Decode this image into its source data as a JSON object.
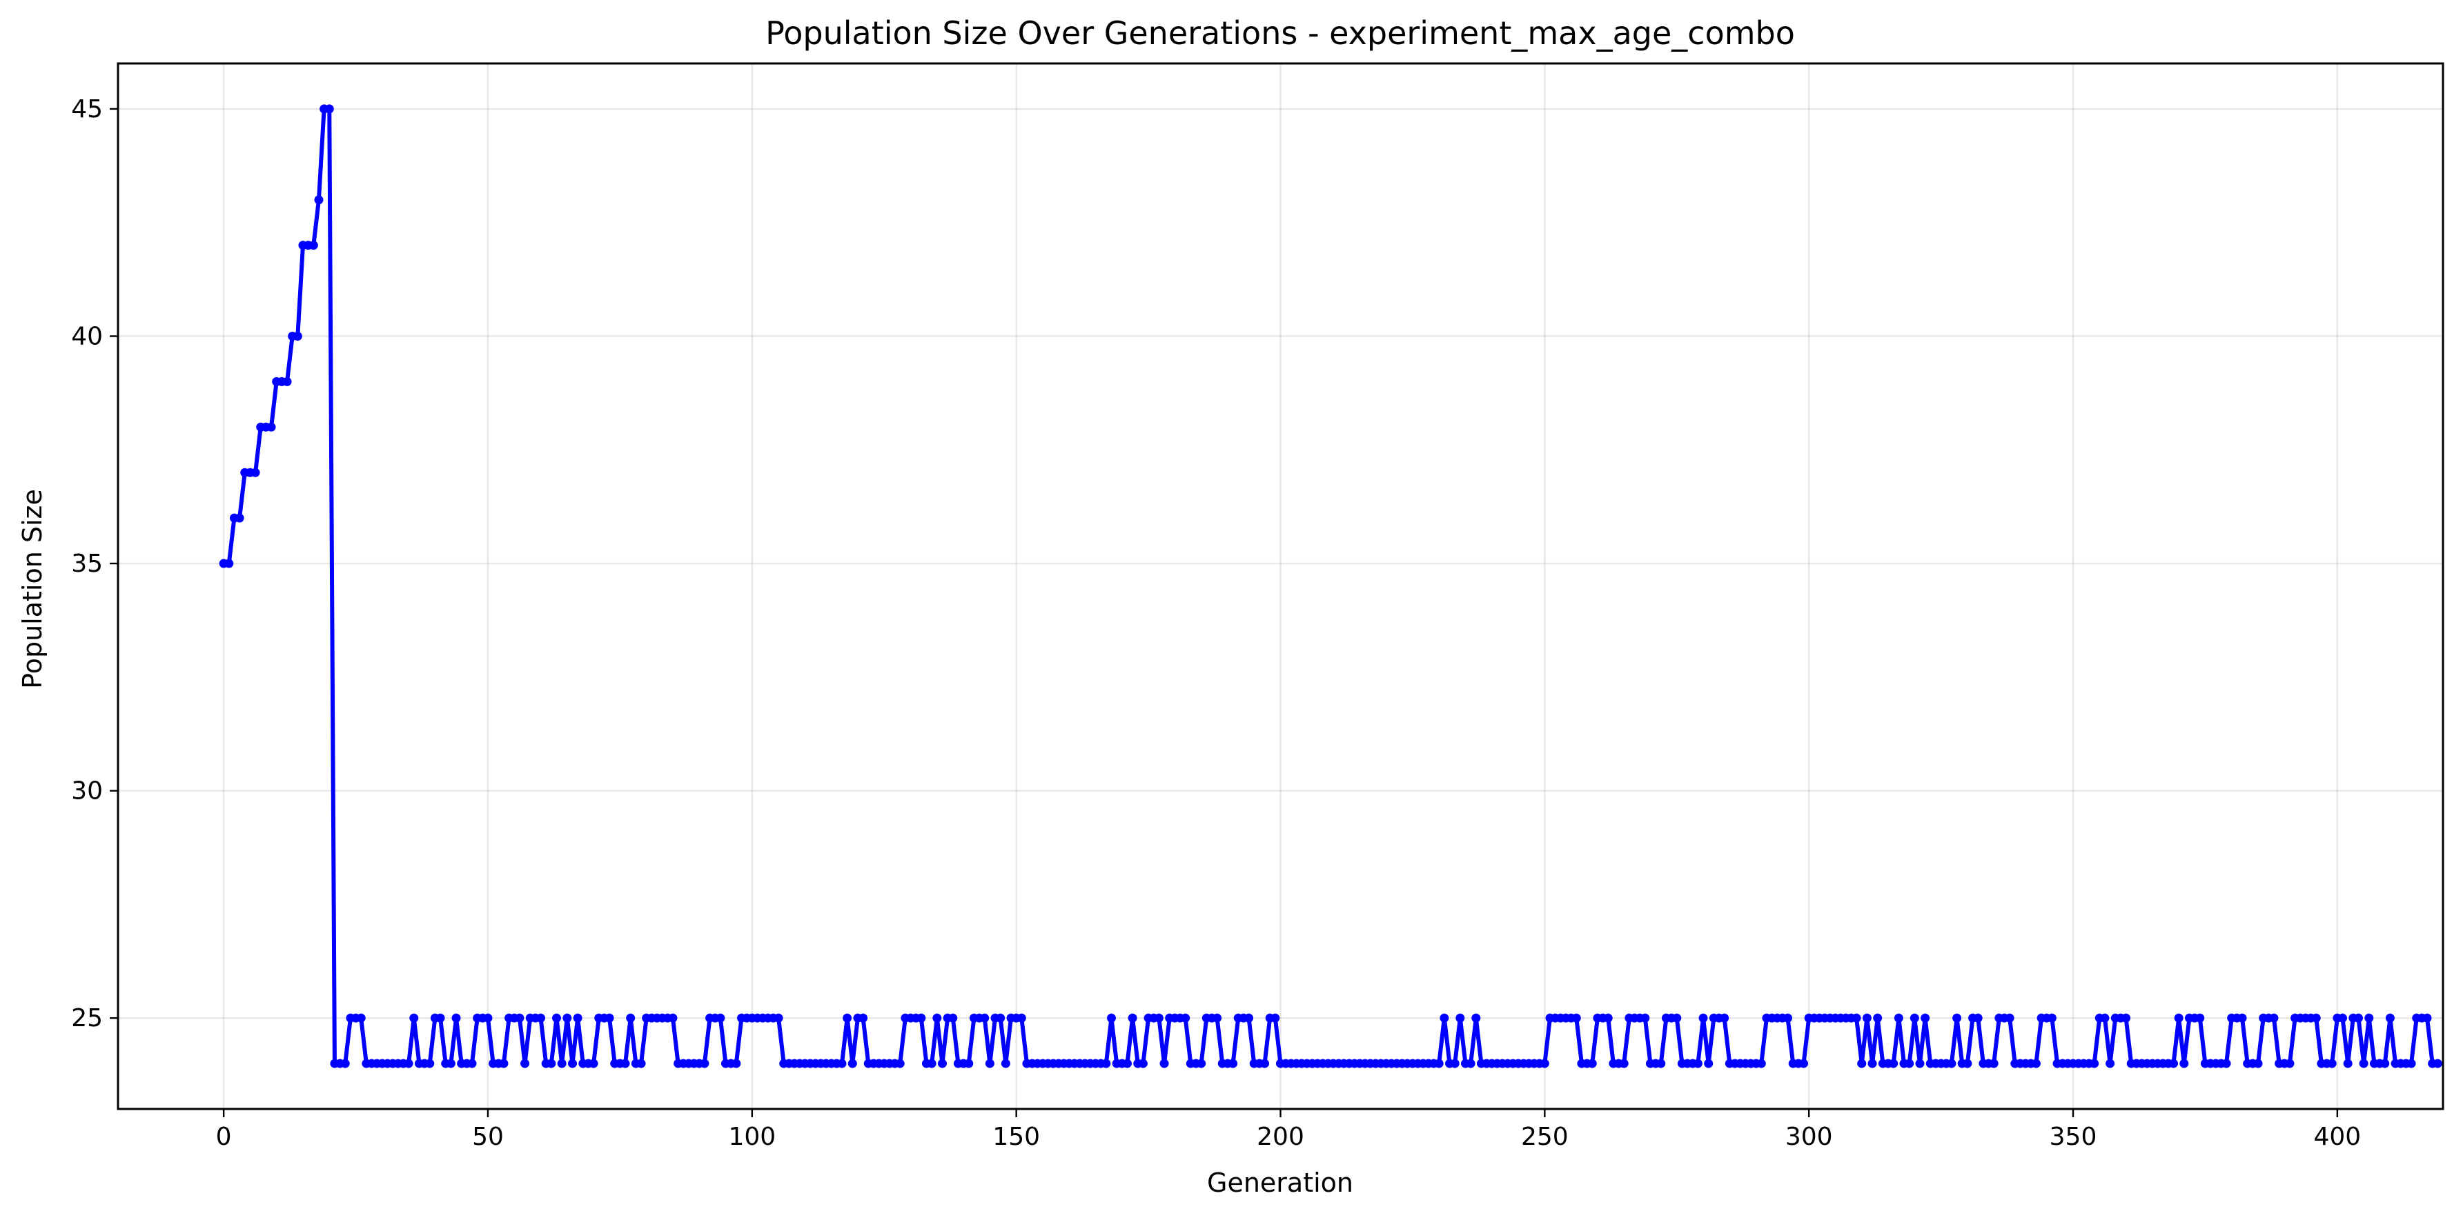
{
  "chart_data": {
    "type": "line",
    "title": "Population Size Over Generations - experiment_max_age_combo",
    "xlabel": "Generation",
    "ylabel": "Population Size",
    "xlim": [
      -20,
      420
    ],
    "ylim": [
      23,
      46
    ],
    "xticks": [
      0,
      50,
      100,
      150,
      200,
      250,
      300,
      350,
      400
    ],
    "yticks": [
      25,
      30,
      35,
      40,
      45
    ],
    "grid": true,
    "legend": "none",
    "series_color": "#0000ff",
    "series": [
      {
        "x_start": 0,
        "x_step": 1,
        "values": [
          35,
          35,
          36,
          36,
          37,
          37,
          37,
          38,
          38,
          38,
          39,
          39,
          39,
          40,
          40,
          42,
          42,
          42,
          43,
          45,
          45,
          24,
          24,
          24,
          25,
          25,
          25,
          24,
          24,
          24,
          24,
          24,
          24,
          24,
          24,
          24,
          25,
          24,
          24,
          24,
          25,
          25,
          24,
          24,
          25,
          24,
          24,
          24,
          25,
          25,
          25,
          24,
          24,
          24,
          25,
          25,
          25,
          24,
          25,
          25,
          25,
          24,
          24,
          25,
          24,
          25,
          24,
          25,
          24,
          24,
          24,
          25,
          25,
          25,
          24,
          24,
          24,
          25,
          24,
          24,
          25,
          25,
          25,
          25,
          25,
          25,
          24,
          24,
          24,
          24,
          24,
          24,
          25,
          25,
          25,
          24,
          24,
          24,
          25,
          25,
          25,
          25,
          25,
          25,
          25,
          25,
          24,
          24,
          24,
          24,
          24,
          24,
          24,
          24,
          24,
          24,
          24,
          24,
          25,
          24,
          25,
          25,
          24,
          24,
          24,
          24,
          24,
          24,
          24,
          25,
          25,
          25,
          25,
          24,
          24,
          25,
          24,
          25,
          25,
          24,
          24,
          24,
          25,
          25,
          25,
          24,
          25,
          25,
          24,
          25,
          25,
          25,
          24,
          24,
          24,
          24,
          24,
          24,
          24,
          24,
          24,
          24,
          24,
          24,
          24,
          24,
          24,
          24,
          25,
          24,
          24,
          24,
          25,
          24,
          24,
          25,
          25,
          25,
          24,
          25,
          25,
          25,
          25,
          24,
          24,
          24,
          25,
          25,
          25,
          24,
          24,
          24,
          25,
          25,
          25,
          24,
          24,
          24,
          25,
          25,
          24,
          24,
          24,
          24,
          24,
          24,
          24,
          24,
          24,
          24,
          24,
          24,
          24,
          24,
          24,
          24,
          24,
          24,
          24,
          24,
          24,
          24,
          24,
          24,
          24,
          24,
          24,
          24,
          24,
          24,
          24,
          25,
          24,
          24,
          25,
          24,
          24,
          25,
          24,
          24,
          24,
          24,
          24,
          24,
          24,
          24,
          24,
          24,
          24,
          24,
          24,
          25,
          25,
          25,
          25,
          25,
          25,
          24,
          24,
          24,
          25,
          25,
          25,
          24,
          24,
          24,
          25,
          25,
          25,
          25,
          24,
          24,
          24,
          25,
          25,
          25,
          24,
          24,
          24,
          24,
          25,
          24,
          25,
          25,
          25,
          24,
          24,
          24,
          24,
          24,
          24,
          24,
          25,
          25,
          25,
          25,
          25,
          24,
          24,
          24,
          25,
          25,
          25,
          25,
          25,
          25,
          25,
          25,
          25,
          25,
          24,
          25,
          24,
          25,
          24,
          24,
          24,
          25,
          24,
          24,
          25,
          24,
          25,
          24,
          24,
          24,
          24,
          24,
          25,
          24,
          24,
          25,
          25,
          24,
          24,
          24,
          25,
          25,
          25,
          24,
          24,
          24,
          24,
          24,
          25,
          25,
          25,
          24,
          24,
          24,
          24,
          24,
          24,
          24,
          24,
          25,
          25,
          24,
          25,
          25,
          25,
          24,
          24,
          24,
          24,
          24,
          24,
          24,
          24,
          24,
          25,
          24,
          25,
          25,
          25,
          24,
          24,
          24,
          24,
          24,
          25,
          25,
          25,
          24,
          24,
          24,
          25,
          25,
          25,
          24,
          24,
          24,
          25,
          25,
          25,
          25,
          25,
          24,
          24,
          24,
          25,
          25,
          24,
          25,
          25,
          24,
          25,
          24,
          24,
          24,
          25,
          24,
          24,
          24,
          24,
          25,
          25,
          25,
          24,
          24
        ]
      }
    ]
  }
}
